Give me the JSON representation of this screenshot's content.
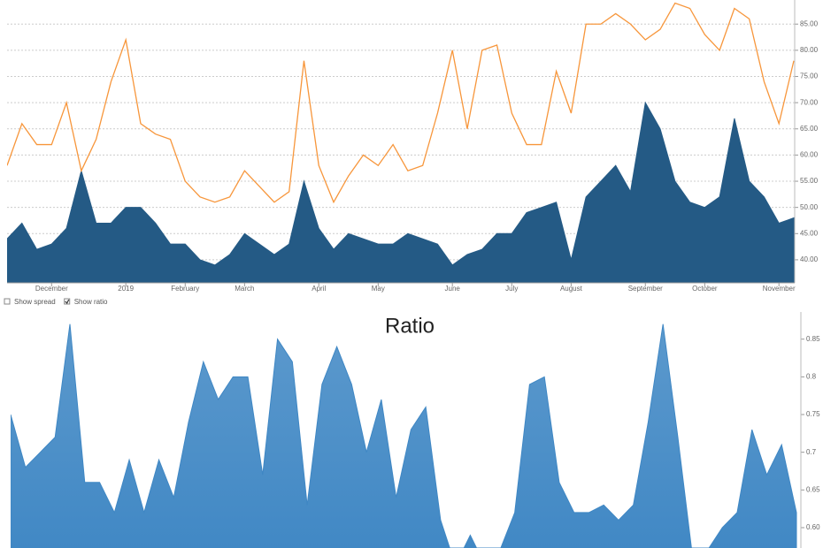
{
  "chart_data": [
    {
      "type": "area-line",
      "categories": [
        null,
        null,
        null,
        "December",
        null,
        null,
        null,
        null,
        "2019",
        null,
        null,
        null,
        "February",
        null,
        null,
        null,
        "March",
        null,
        null,
        null,
        null,
        "April",
        null,
        null,
        null,
        "May",
        null,
        null,
        null,
        null,
        "June",
        null,
        null,
        null,
        "July",
        null,
        null,
        null,
        "August",
        null,
        null,
        null,
        null,
        "September",
        null,
        null,
        null,
        "October",
        null,
        null,
        null,
        null,
        "November",
        null
      ],
      "series": [
        {
          "kind": "area",
          "color": "#245a85",
          "values": [
            44,
            47,
            42,
            43,
            46,
            57,
            47,
            47,
            50,
            50,
            47,
            43,
            43,
            40,
            39,
            41,
            45,
            43,
            41,
            43,
            55,
            46,
            42,
            45,
            44,
            43,
            43,
            45,
            44,
            43,
            39,
            41,
            42,
            45,
            45,
            49,
            50,
            51,
            40,
            52,
            55,
            58,
            53,
            70,
            65,
            55,
            51,
            50,
            52,
            67,
            55,
            52,
            47,
            48
          ]
        },
        {
          "kind": "line",
          "color": "#f7963b",
          "values": [
            58,
            66,
            62,
            62,
            70,
            57,
            63,
            74,
            82,
            66,
            64,
            63,
            55,
            52,
            51,
            52,
            57,
            54,
            51,
            53,
            78,
            58,
            51,
            56,
            60,
            58,
            62,
            57,
            58,
            68,
            80,
            65,
            80,
            81,
            68,
            62,
            62,
            76,
            68,
            85,
            85,
            87,
            85,
            82,
            84,
            89,
            88,
            83,
            80,
            88,
            86,
            74,
            66,
            78
          ]
        }
      ],
      "ylim": [
        35.6,
        89.6
      ],
      "yticks": [
        {
          "value": 40,
          "label": "40.00"
        },
        {
          "value": 45,
          "label": "45.00"
        },
        {
          "value": 50,
          "label": "50.00"
        },
        {
          "value": 55,
          "label": "55.00"
        },
        {
          "value": 60,
          "label": "60.00"
        },
        {
          "value": 65,
          "label": "65.00"
        },
        {
          "value": 70,
          "label": "70.00"
        },
        {
          "value": 75,
          "label": "75.00"
        },
        {
          "value": 80,
          "label": "80.00"
        },
        {
          "value": 85,
          "label": "85.00"
        }
      ],
      "grid": true
    },
    {
      "type": "area",
      "title": "Ratio",
      "series": [
        {
          "kind": "area",
          "color": "#3f87c4",
          "values": [
            0.75,
            0.68,
            0.7,
            0.72,
            0.87,
            0.66,
            0.66,
            0.62,
            0.69,
            0.62,
            0.69,
            0.64,
            0.74,
            0.82,
            0.77,
            0.8,
            0.8,
            0.67,
            0.85,
            0.82,
            0.63,
            0.79,
            0.84,
            0.79,
            0.7,
            0.77,
            0.64,
            0.73,
            0.76,
            0.61,
            0.55,
            0.59,
            0.55,
            0.57,
            0.62,
            0.79,
            0.8,
            0.66,
            0.62,
            0.62,
            0.63,
            0.61,
            0.63,
            0.74,
            0.87,
            0.72,
            0.56,
            0.57,
            0.6,
            0.62,
            0.73,
            0.67,
            0.71,
            0.62
          ]
        }
      ],
      "ylim": [
        0.573,
        0.886
      ],
      "yticks": [
        {
          "value": 0.6,
          "label": "0.60"
        },
        0.65,
        0.7,
        0.75,
        0.8,
        0.85
      ],
      "grid": false
    }
  ],
  "controls": [
    {
      "label": "Show spread",
      "checked": false
    },
    {
      "label": "Show ratio",
      "checked": true
    }
  ]
}
